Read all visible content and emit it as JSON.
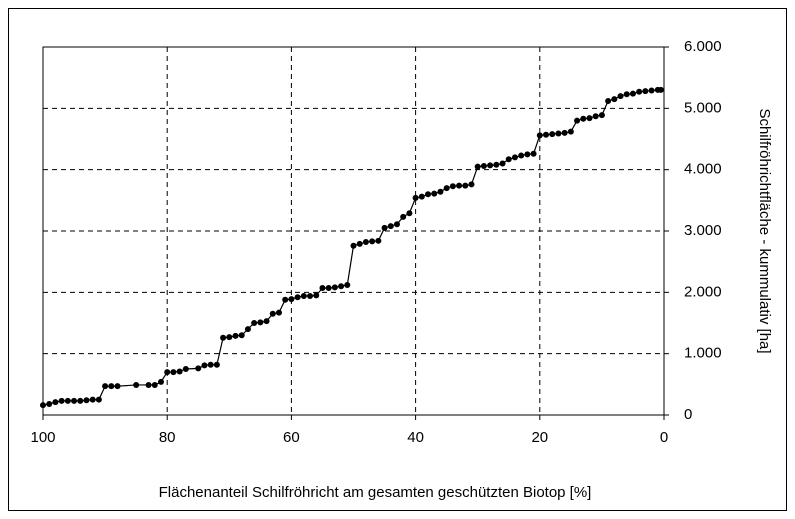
{
  "chart_data": {
    "type": "line",
    "x_label": "Flächenanteil Schilfröhricht am gesamten geschützten Biotop [%]",
    "y_label": "Schilfröhrichtfläche - kummulativ   [ha]",
    "y_axis_side": "right",
    "grid": true,
    "color": "#000000",
    "marker": "circle",
    "xlim": [
      100,
      0
    ],
    "xticks": [
      100,
      80,
      60,
      40,
      20,
      0
    ],
    "ylim": [
      0,
      6000
    ],
    "yticks": [
      0,
      {
        "value": 1000,
        "label": "1.000"
      },
      {
        "value": 2000,
        "label": "2.000"
      },
      {
        "value": 3000,
        "label": "3.000"
      },
      {
        "value": 4000,
        "label": "4.000"
      },
      {
        "value": 5000,
        "label": "5.000"
      },
      {
        "value": 6000,
        "label": "6.000"
      }
    ],
    "x": [
      100,
      99,
      98,
      97,
      96,
      95,
      94,
      93,
      92,
      91,
      90,
      89,
      88,
      85,
      83,
      82,
      81,
      80,
      79,
      78,
      77,
      75,
      74,
      73,
      72,
      71,
      70,
      69,
      68,
      67,
      66,
      65,
      64,
      63,
      62,
      61,
      60,
      59,
      58,
      57,
      56,
      55,
      54,
      53,
      52,
      51,
      50,
      49,
      48,
      47,
      46,
      45,
      44,
      43,
      42,
      41,
      40,
      39,
      38,
      37,
      36,
      35,
      34,
      33,
      32,
      31,
      30,
      29,
      28,
      27,
      26,
      25,
      24,
      23,
      22,
      21,
      20,
      19,
      18,
      17,
      16,
      15,
      14,
      13,
      12,
      11,
      10,
      9,
      8,
      7,
      6,
      5,
      4,
      3,
      2,
      1,
      0.5
    ],
    "values": [
      160,
      180,
      210,
      230,
      230,
      230,
      230,
      240,
      250,
      250,
      470,
      470,
      470,
      490,
      490,
      490,
      540,
      700,
      700,
      710,
      750,
      760,
      810,
      820,
      820,
      1260,
      1270,
      1290,
      1300,
      1400,
      1500,
      1510,
      1530,
      1650,
      1670,
      1880,
      1890,
      1920,
      1940,
      1940,
      1950,
      2070,
      2070,
      2080,
      2100,
      2120,
      2760,
      2790,
      2820,
      2830,
      2840,
      3050,
      3080,
      3110,
      3230,
      3290,
      3540,
      3560,
      3600,
      3610,
      3640,
      3700,
      3730,
      3740,
      3740,
      3760,
      4050,
      4060,
      4070,
      4080,
      4100,
      4170,
      4200,
      4230,
      4250,
      4260,
      4560,
      4570,
      4580,
      4590,
      4600,
      4620,
      4800,
      4830,
      4840,
      4870,
      4890,
      5120,
      5150,
      5200,
      5230,
      5240,
      5270,
      5280,
      5290,
      5300,
      5300
    ]
  }
}
